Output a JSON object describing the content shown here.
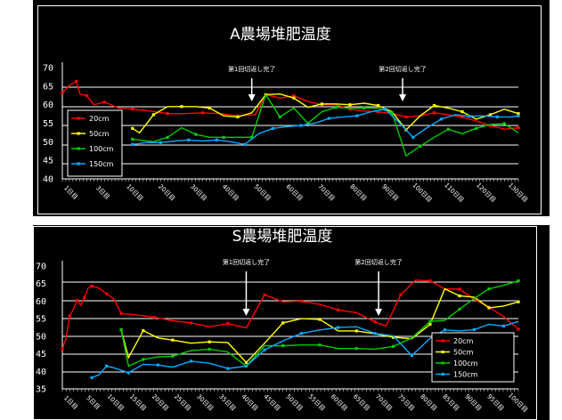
{
  "chart_data": [
    {
      "type": "line",
      "title": "A農場堆肥温度",
      "y_ticks": [
        "70",
        "65",
        "60",
        "55",
        "50",
        "45",
        "40"
      ],
      "ylim": [
        40,
        70
      ],
      "x_tick_labels": [
        "1日目",
        "3日目",
        "10日目",
        "20日目",
        "30日目",
        "40日目",
        "50日目",
        "60日目",
        "70日目",
        "80日目",
        "90日目",
        "100日目",
        "110日目",
        "120日目",
        "130日目"
      ],
      "annotations": [
        {
          "text": "第1回切返し完了",
          "x": 54
        },
        {
          "text": "第2回切返し完了",
          "x": 97
        }
      ],
      "legend_position": "left",
      "grid": true,
      "series": [
        {
          "name": "20cm",
          "color": "#ff0000",
          "points": [
            [
              0,
              63.2
            ],
            [
              2,
              65.2
            ],
            [
              4,
              66.3
            ],
            [
              5,
              62.9
            ],
            [
              7,
              62.4
            ],
            [
              9,
              60.0
            ],
            [
              12,
              60.7
            ],
            [
              16,
              59.1
            ],
            [
              20,
              58.8
            ],
            [
              25,
              58.3
            ],
            [
              30,
              57.6
            ],
            [
              35,
              57.6
            ],
            [
              40,
              57.8
            ],
            [
              45,
              57.6
            ],
            [
              50,
              57.0
            ],
            [
              55,
              57.3
            ],
            [
              58,
              62.7
            ],
            [
              62,
              61.8
            ],
            [
              66,
              62.4
            ],
            [
              70,
              60.9
            ],
            [
              74,
              60.0
            ],
            [
              78,
              60.0
            ],
            [
              82,
              58.8
            ],
            [
              86,
              58.3
            ],
            [
              90,
              58.1
            ],
            [
              94,
              57.6
            ],
            [
              98,
              56.7
            ],
            [
              102,
              57.0
            ],
            [
              106,
              57.8
            ],
            [
              110,
              57.3
            ],
            [
              114,
              56.7
            ],
            [
              118,
              55.6
            ],
            [
              122,
              54.4
            ],
            [
              126,
              53.4
            ],
            [
              130,
              53.8
            ]
          ]
        },
        {
          "name": "50cm",
          "color": "#ffff00",
          "points": [
            [
              20,
              53.6
            ],
            [
              22,
              52.4
            ],
            [
              26,
              57.3
            ],
            [
              30,
              59.5
            ],
            [
              34,
              59.5
            ],
            [
              38,
              59.5
            ],
            [
              42,
              59.1
            ],
            [
              46,
              57.0
            ],
            [
              50,
              56.7
            ],
            [
              54,
              57.8
            ],
            [
              58,
              62.7
            ],
            [
              62,
              62.9
            ],
            [
              66,
              61.8
            ],
            [
              70,
              59.3
            ],
            [
              74,
              60.2
            ],
            [
              78,
              60.2
            ],
            [
              82,
              60.0
            ],
            [
              86,
              60.4
            ],
            [
              90,
              59.8
            ],
            [
              94,
              58.1
            ],
            [
              98,
              53.2
            ],
            [
              102,
              57.0
            ],
            [
              106,
              59.8
            ],
            [
              110,
              59.1
            ],
            [
              114,
              58.1
            ],
            [
              118,
              56.1
            ],
            [
              122,
              57.3
            ],
            [
              126,
              58.8
            ],
            [
              130,
              57.6
            ]
          ]
        },
        {
          "name": "100cm",
          "color": "#00cc00",
          "points": [
            [
              20,
              50.7
            ],
            [
              26,
              50.0
            ],
            [
              30,
              51.2
            ],
            [
              34,
              53.8
            ],
            [
              38,
              52.0
            ],
            [
              42,
              51.2
            ],
            [
              46,
              51.2
            ],
            [
              50,
              51.2
            ],
            [
              54,
              51.2
            ],
            [
              58,
              62.7
            ],
            [
              62,
              56.7
            ],
            [
              66,
              59.1
            ],
            [
              70,
              55.0
            ],
            [
              74,
              58.1
            ],
            [
              78,
              59.3
            ],
            [
              82,
              59.1
            ],
            [
              86,
              59.1
            ],
            [
              90,
              59.1
            ],
            [
              94,
              57.8
            ],
            [
              98,
              46.2
            ],
            [
              102,
              48.8
            ],
            [
              106,
              51.2
            ],
            [
              110,
              53.4
            ],
            [
              114,
              52.2
            ],
            [
              118,
              53.6
            ],
            [
              122,
              54.7
            ],
            [
              126,
              54.9
            ],
            [
              130,
              52.4
            ]
          ]
        },
        {
          "name": "150cm",
          "color": "#00aaff",
          "points": [
            [
              20,
              49.3
            ],
            [
              24,
              49.8
            ],
            [
              28,
              49.8
            ],
            [
              32,
              50.2
            ],
            [
              36,
              50.5
            ],
            [
              40,
              50.2
            ],
            [
              44,
              50.5
            ],
            [
              48,
              50.0
            ],
            [
              52,
              49.3
            ],
            [
              56,
              52.2
            ],
            [
              60,
              53.6
            ],
            [
              64,
              54.1
            ],
            [
              68,
              54.4
            ],
            [
              72,
              55.0
            ],
            [
              76,
              56.3
            ],
            [
              80,
              56.7
            ],
            [
              84,
              57.0
            ],
            [
              88,
              58.1
            ],
            [
              92,
              58.8
            ],
            [
              96,
              55.2
            ],
            [
              100,
              51.2
            ],
            [
              104,
              53.8
            ],
            [
              108,
              56.1
            ],
            [
              112,
              57.3
            ],
            [
              116,
              56.9
            ],
            [
              120,
              57.0
            ],
            [
              124,
              56.7
            ],
            [
              128,
              56.7
            ],
            [
              130,
              57.0
            ]
          ]
        }
      ]
    },
    {
      "type": "line",
      "title": "S農場堆肥温度",
      "y_ticks": [
        "70",
        "65",
        "60",
        "55",
        "50",
        "45",
        "40",
        "35"
      ],
      "ylim": [
        35,
        70
      ],
      "x_tick_labels": [
        "1日目",
        "5日目",
        "10日目",
        "15日目",
        "20日目",
        "25日目",
        "30日目",
        "35日目",
        "40日目",
        "45日目",
        "50日目",
        "55日目",
        "60日目",
        "65日目",
        "70日目",
        "75日目",
        "80日目",
        "85日目",
        "90日目",
        "95日目",
        "100日目"
      ],
      "annotations": [
        {
          "text": "第1回切返し完了",
          "x": 50
        },
        {
          "text": "第2回切返し完了",
          "x": 86
        }
      ],
      "legend_position": "bottom-right",
      "grid": true,
      "series": [
        {
          "name": "20cm",
          "color": "#ff0000",
          "points": [
            [
              0,
              46.3
            ],
            [
              1,
              49.4
            ],
            [
              2,
              55.8
            ],
            [
              3,
              57.7
            ],
            [
              4,
              60.2
            ],
            [
              5,
              58.9
            ],
            [
              6,
              61.0
            ],
            [
              7,
              63.7
            ],
            [
              8,
              64.3
            ],
            [
              10,
              63.7
            ],
            [
              12,
              62.1
            ],
            [
              14,
              60.6
            ],
            [
              16,
              56.5
            ],
            [
              20,
              56.1
            ],
            [
              25,
              55.4
            ],
            [
              30,
              54.4
            ],
            [
              35,
              53.8
            ],
            [
              40,
              52.7
            ],
            [
              45,
              53.6
            ],
            [
              50,
              52.4
            ],
            [
              55,
              61.8
            ],
            [
              60,
              59.8
            ],
            [
              65,
              60.0
            ],
            [
              70,
              59.1
            ],
            [
              75,
              57.5
            ],
            [
              80,
              56.7
            ],
            [
              85,
              54.1
            ],
            [
              88,
              52.9
            ],
            [
              92,
              61.8
            ],
            [
              96,
              66.0
            ],
            [
              100,
              65.8
            ],
            [
              104,
              63.5
            ],
            [
              108,
              63.4
            ],
            [
              112,
              60.6
            ],
            [
              116,
              58.3
            ],
            [
              120,
              55.6
            ],
            [
              124,
              52.0
            ]
          ]
        },
        {
          "name": "50cm",
          "color": "#ffff00",
          "points": [
            [
              16,
              51.8
            ],
            [
              18,
              43.9
            ],
            [
              22,
              51.6
            ],
            [
              26,
              49.5
            ],
            [
              30,
              48.9
            ],
            [
              35,
              48.0
            ],
            [
              40,
              48.4
            ],
            [
              45,
              48.2
            ],
            [
              50,
              42.5
            ],
            [
              55,
              48.0
            ],
            [
              60,
              53.8
            ],
            [
              65,
              55.0
            ],
            [
              70,
              54.8
            ],
            [
              75,
              51.5
            ],
            [
              80,
              51.5
            ],
            [
              85,
              50.7
            ],
            [
              90,
              49.7
            ],
            [
              95,
              49.3
            ],
            [
              100,
              53.4
            ],
            [
              104,
              63.5
            ],
            [
              108,
              61.5
            ],
            [
              112,
              61.1
            ],
            [
              116,
              58.1
            ],
            [
              120,
              58.6
            ],
            [
              124,
              59.8
            ]
          ]
        },
        {
          "name": "100cm",
          "color": "#00cc00",
          "points": [
            [
              16,
              51.8
            ],
            [
              18,
              41.5
            ],
            [
              22,
              43.4
            ],
            [
              26,
              44.1
            ],
            [
              30,
              44.3
            ],
            [
              35,
              45.9
            ],
            [
              40,
              46.3
            ],
            [
              45,
              45.5
            ],
            [
              50,
              41.5
            ],
            [
              55,
              47.3
            ],
            [
              60,
              47.3
            ],
            [
              65,
              47.5
            ],
            [
              70,
              47.5
            ],
            [
              75,
              46.5
            ],
            [
              80,
              46.5
            ],
            [
              85,
              46.3
            ],
            [
              90,
              47.1
            ],
            [
              95,
              49.5
            ],
            [
              100,
              54.2
            ],
            [
              104,
              54.5
            ],
            [
              108,
              57.7
            ],
            [
              112,
              60.8
            ],
            [
              116,
              63.5
            ],
            [
              120,
              64.5
            ],
            [
              124,
              65.8
            ]
          ]
        },
        {
          "name": "150cm",
          "color": "#00aaff",
          "points": [
            [
              8,
              38.2
            ],
            [
              10,
              39.0
            ],
            [
              12,
              41.5
            ],
            [
              14,
              41.0
            ],
            [
              18,
              39.6
            ],
            [
              22,
              42.0
            ],
            [
              26,
              41.8
            ],
            [
              30,
              41.2
            ],
            [
              35,
              42.9
            ],
            [
              40,
              42.3
            ],
            [
              45,
              40.8
            ],
            [
              50,
              41.5
            ],
            [
              55,
              46.1
            ],
            [
              60,
              48.7
            ],
            [
              65,
              50.8
            ],
            [
              70,
              51.8
            ],
            [
              75,
              52.5
            ],
            [
              80,
              52.7
            ],
            [
              85,
              50.8
            ],
            [
              90,
              50.1
            ],
            [
              95,
              44.5
            ],
            [
              100,
              49.4
            ],
            [
              104,
              51.8
            ],
            [
              108,
              51.5
            ],
            [
              112,
              51.9
            ],
            [
              116,
              53.4
            ],
            [
              120,
              52.9
            ],
            [
              124,
              54.2
            ]
          ]
        }
      ]
    }
  ]
}
